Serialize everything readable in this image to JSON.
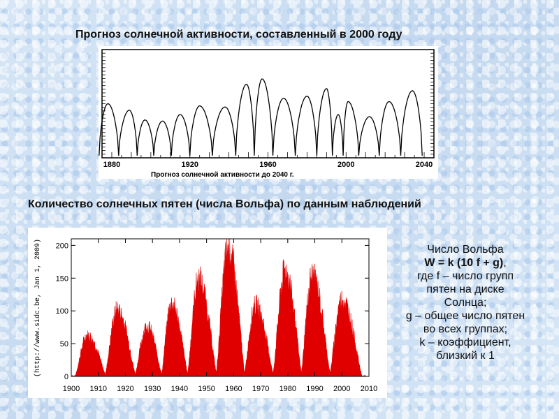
{
  "title_top": "Прогноз солнечной активности, составленный в 2000 году",
  "title_bottom": "Количество солнечных пятен (числа Вольфа) по данным наблюдений",
  "chart_data": [
    {
      "type": "line",
      "caption": "Прогноз солнечной активности до 2040 г.",
      "xlim": [
        1875,
        2045
      ],
      "x_ticks": [
        1880,
        1920,
        1960,
        2000,
        2040
      ],
      "cycle_peaks": [
        {
          "x": 1878,
          "y": 0.5
        },
        {
          "x": 1889,
          "y": 0.44
        },
        {
          "x": 1897,
          "y": 0.35
        },
        {
          "x": 1906,
          "y": 0.34
        },
        {
          "x": 1915,
          "y": 0.4
        },
        {
          "x": 1925,
          "y": 0.48
        },
        {
          "x": 1938,
          "y": 0.47
        },
        {
          "x": 1949,
          "y": 0.68
        },
        {
          "x": 1957,
          "y": 0.73
        },
        {
          "x": 1968,
          "y": 0.55
        },
        {
          "x": 1980,
          "y": 0.57
        },
        {
          "x": 1990,
          "y": 0.64
        },
        {
          "x": 1996,
          "y": 0.4
        },
        {
          "x": 2001,
          "y": 0.52
        },
        {
          "x": 2012,
          "y": 0.38
        },
        {
          "x": 2022,
          "y": 0.52
        },
        {
          "x": 2034,
          "y": 0.62
        }
      ]
    },
    {
      "type": "area",
      "side_label": "(http://www.sidc.be, Jan 1, 2009)",
      "xlim": [
        1900,
        2010
      ],
      "ylim": [
        0,
        210
      ],
      "x_ticks": [
        1900,
        1910,
        1920,
        1930,
        1940,
        1950,
        1960,
        1970,
        1980,
        1990,
        2000,
        2010
      ],
      "y_ticks": [
        0,
        50,
        100,
        150,
        200
      ],
      "color": "#e00000",
      "cycles": [
        {
          "peak_year": 1906,
          "value": 64
        },
        {
          "peak_year": 1917,
          "value": 104
        },
        {
          "peak_year": 1928,
          "value": 78
        },
        {
          "peak_year": 1937,
          "value": 114
        },
        {
          "peak_year": 1947,
          "value": 152
        },
        {
          "peak_year": 1958,
          "value": 201
        },
        {
          "peak_year": 1968,
          "value": 111
        },
        {
          "peak_year": 1979,
          "value": 165
        },
        {
          "peak_year": 1989,
          "value": 158
        },
        {
          "peak_year": 2000,
          "value": 120
        }
      ]
    }
  ],
  "explanation": {
    "line1": "Число Вольфа",
    "formula": "W =  k (10 f + g)",
    "formula_suffix": ",",
    "line3": "где f – число групп",
    "line4": "пятен на диске",
    "line5": "Солнца;",
    "line6": "g – общее число пятен",
    "line7": "во всех группах;",
    "line8": "k – коэффициент,",
    "line9": "близкий к 1"
  }
}
